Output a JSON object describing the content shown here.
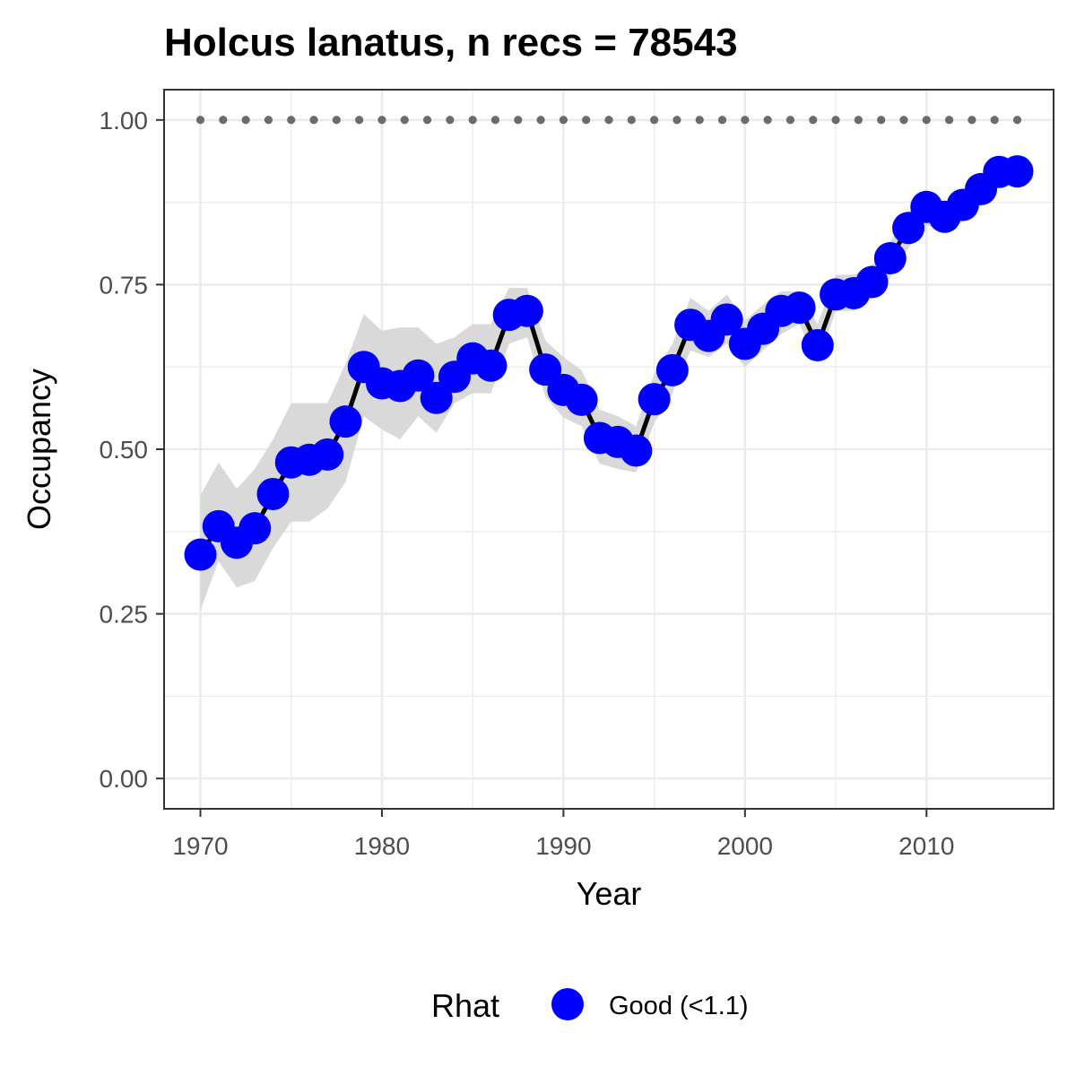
{
  "chart_data": {
    "type": "line",
    "title": "Holcus lanatus, n recs = 78543",
    "xlabel": "Year",
    "ylabel": "Occupancy",
    "xlim": [
      1968,
      2017
    ],
    "ylim": [
      -0.046,
      1.046
    ],
    "x_ticks": [
      1970,
      1980,
      1990,
      2000,
      2010
    ],
    "x_tick_labels": [
      "1970",
      "1980",
      "1990",
      "2000",
      "2010"
    ],
    "y_ticks": [
      0,
      0.25,
      0.5,
      0.75,
      1
    ],
    "y_tick_labels": [
      "0.00",
      "0.25",
      "0.50",
      "0.75",
      "1.00"
    ],
    "grid": true,
    "x": [
      1970,
      1971,
      1972,
      1973,
      1974,
      1975,
      1976,
      1977,
      1978,
      1979,
      1980,
      1981,
      1982,
      1983,
      1984,
      1985,
      1986,
      1987,
      1988,
      1989,
      1990,
      1991,
      1992,
      1993,
      1994,
      1995,
      1996,
      1997,
      1998,
      1999,
      2000,
      2001,
      2002,
      2003,
      2004,
      2005,
      2006,
      2007,
      2008,
      2009,
      2010,
      2011,
      2012,
      2013,
      2014,
      2015
    ],
    "series": [
      {
        "values": [
          0.34,
          0.383,
          0.358,
          0.38,
          0.432,
          0.48,
          0.484,
          0.492,
          0.542,
          0.625,
          0.6,
          0.596,
          0.612,
          0.578,
          0.61,
          0.638,
          0.627,
          0.704,
          0.71,
          0.621,
          0.59,
          0.575,
          0.517,
          0.511,
          0.498,
          0.576,
          0.62,
          0.689,
          0.672,
          0.697,
          0.66,
          0.683,
          0.71,
          0.715,
          0.658,
          0.735,
          0.737,
          0.754,
          0.79,
          0.836,
          0.868,
          0.853,
          0.871,
          0.895,
          0.921,
          0.922
        ],
        "lower": [
          0.255,
          0.33,
          0.29,
          0.3,
          0.35,
          0.39,
          0.39,
          0.41,
          0.45,
          0.55,
          0.53,
          0.515,
          0.55,
          0.525,
          0.57,
          0.585,
          0.585,
          0.66,
          0.67,
          0.58,
          0.548,
          0.535,
          0.478,
          0.47,
          0.465,
          0.54,
          0.585,
          0.65,
          0.64,
          0.66,
          0.625,
          0.65,
          0.675,
          0.69,
          0.63,
          0.71,
          0.71,
          0.73,
          0.76,
          0.805,
          0.84,
          0.83,
          0.845,
          0.87,
          0.9,
          0.905
        ],
        "upper": [
          0.43,
          0.48,
          0.44,
          0.47,
          0.515,
          0.57,
          0.57,
          0.57,
          0.63,
          0.705,
          0.68,
          0.685,
          0.685,
          0.66,
          0.67,
          0.69,
          0.69,
          0.745,
          0.745,
          0.665,
          0.64,
          0.62,
          0.56,
          0.55,
          0.535,
          0.615,
          0.66,
          0.73,
          0.71,
          0.735,
          0.695,
          0.72,
          0.74,
          0.74,
          0.69,
          0.765,
          0.765,
          0.78,
          0.815,
          0.86,
          0.89,
          0.875,
          0.895,
          0.915,
          0.94,
          0.94
        ],
        "rhat_status": "Good (<1.1)"
      }
    ],
    "reference_line": {
      "y": 1.0,
      "style": "dotted"
    },
    "legend": {
      "title": "Rhat",
      "position": "bottom",
      "entries": [
        {
          "label": "Good (<1.1)",
          "color": "#0000ff"
        }
      ]
    },
    "colors": {
      "points": "#0000ff",
      "line": "#000000",
      "ribbon": "#d9d9d9",
      "reference": "#6b6b6b",
      "grid": "#ebebeb",
      "panel_border": "#333333"
    }
  }
}
